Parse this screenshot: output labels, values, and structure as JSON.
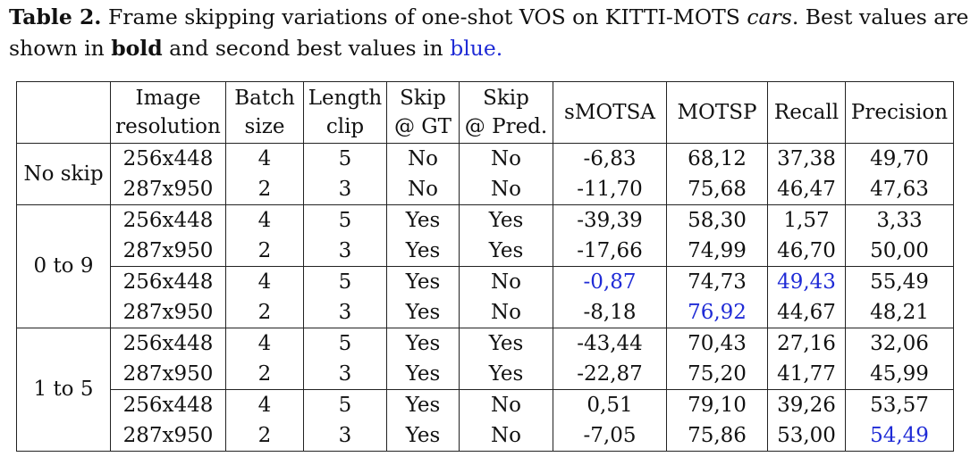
{
  "caption": {
    "label": "Table 2.",
    "text_1": "Frame skipping variations of one-shot VOS on KITTI-MOTS",
    "italic_word": "cars",
    "text_2": ". Best values are shown in",
    "bold_word": "bold",
    "text_3": "and second best values in",
    "blue_word": "blue."
  },
  "table": {
    "headers": [
      [
        "Image",
        "resolution"
      ],
      [
        "Batch",
        "size"
      ],
      [
        "Length",
        "clip"
      ],
      [
        "Skip",
        "@ GT"
      ],
      [
        "Skip",
        "@ Pred."
      ],
      [
        "sMOTSA"
      ],
      [
        "MOTSP"
      ],
      [
        "Recall"
      ],
      [
        "Precision"
      ]
    ],
    "groups": [
      {
        "label": "No skip",
        "rows": [
          {
            "res": "256x448",
            "batch": "4",
            "len": "5",
            "skip_gt": "No",
            "skip_pred": "No",
            "smotsa": "-6,83",
            "motsp": "68,12",
            "recall": "37,38",
            "precision": "49,70"
          },
          {
            "res": "287x950",
            "batch": "2",
            "len": "3",
            "skip_gt": "No",
            "skip_pred": "No",
            "smotsa": "-11,70",
            "motsp": "75,68",
            "recall": "46,47",
            "precision": "47,63"
          }
        ]
      },
      {
        "label": "0 to 9",
        "rows": [
          {
            "res": "256x448",
            "batch": "4",
            "len": "5",
            "skip_gt": "Yes",
            "skip_pred": "Yes",
            "smotsa": "-39,39",
            "motsp": "58,30",
            "recall": "1,57",
            "precision": "3,33"
          },
          {
            "res": "287x950",
            "batch": "2",
            "len": "3",
            "skip_gt": "Yes",
            "skip_pred": "Yes",
            "smotsa": "-17,66",
            "motsp": "74,99",
            "recall": "46,70",
            "precision": "50,00"
          },
          {
            "res": "256x448",
            "batch": "4",
            "len": "5",
            "skip_gt": "Yes",
            "skip_pred": "No",
            "smotsa": "-0,87",
            "motsp": "74,73",
            "recall": "49,43",
            "precision": "55,49"
          },
          {
            "res": "287x950",
            "batch": "2",
            "len": "3",
            "skip_gt": "Yes",
            "skip_pred": "No",
            "smotsa": "-8,18",
            "motsp": "76,92",
            "recall": "44,67",
            "precision": "48,21"
          }
        ]
      },
      {
        "label": "1 to 5",
        "rows": [
          {
            "res": "256x448",
            "batch": "4",
            "len": "5",
            "skip_gt": "Yes",
            "skip_pred": "Yes",
            "smotsa": "-43,44",
            "motsp": "70,43",
            "recall": "27,16",
            "precision": "32,06"
          },
          {
            "res": "287x950",
            "batch": "2",
            "len": "3",
            "skip_gt": "Yes",
            "skip_pred": "Yes",
            "smotsa": "-22,87",
            "motsp": "75,20",
            "recall": "41,77",
            "precision": "45,99"
          },
          {
            "res": "256x448",
            "batch": "4",
            "len": "5",
            "skip_gt": "Yes",
            "skip_pred": "No",
            "smotsa": "0,51",
            "motsp": "79,10",
            "recall": "39,26",
            "precision": "53,57"
          },
          {
            "res": "287x950",
            "batch": "2",
            "len": "3",
            "skip_gt": "Yes",
            "skip_pred": "No",
            "smotsa": "-7,05",
            "motsp": "75,86",
            "recall": "53,00",
            "precision": "54,49"
          }
        ]
      }
    ],
    "highlight_colors": {
      "second_best": "#1f2bd6"
    }
  }
}
